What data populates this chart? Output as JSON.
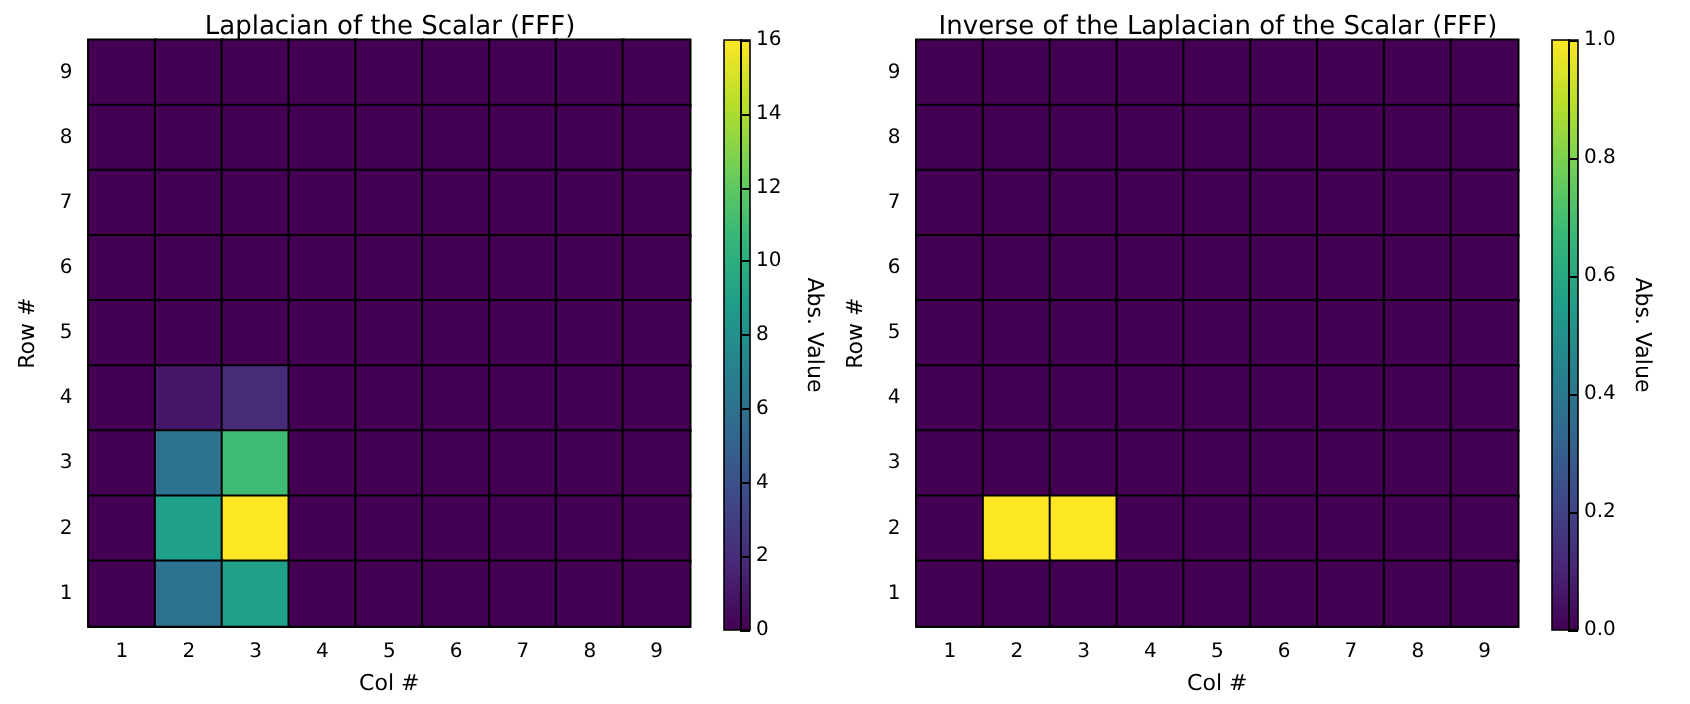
{
  "chart_data": [
    {
      "type": "heatmap",
      "title": "Laplacian of the Scalar (FFF)",
      "xlabel": "Col #",
      "ylabel": "Row #",
      "clabel": "Abs. Value",
      "categories": [
        "1",
        "2",
        "3",
        "4",
        "5",
        "6",
        "7",
        "8",
        "9"
      ],
      "y_categories": [
        "9",
        "8",
        "7",
        "6",
        "5",
        "4",
        "3",
        "2",
        "1"
      ],
      "cells": [
        [
          0,
          0,
          0,
          0,
          0,
          0,
          0,
          0,
          0
        ],
        [
          0,
          0,
          0,
          0,
          0,
          0,
          0,
          0,
          0
        ],
        [
          0,
          0,
          0,
          0,
          0,
          0,
          0,
          0,
          0
        ],
        [
          0,
          0,
          0,
          0,
          0,
          0,
          0,
          0,
          0
        ],
        [
          0,
          0,
          0,
          0,
          0,
          0,
          0,
          0,
          0
        ],
        [
          0,
          1,
          2,
          0,
          0,
          0,
          0,
          0,
          0
        ],
        [
          0,
          6,
          11,
          0,
          0,
          0,
          0,
          0,
          0
        ],
        [
          0,
          9,
          16,
          0,
          0,
          0,
          0,
          0,
          0
        ],
        [
          0,
          6,
          9,
          0,
          0,
          0,
          0,
          0,
          0
        ]
      ],
      "clim": [
        0,
        16
      ],
      "cticks": [
        0,
        2,
        4,
        6,
        8,
        10,
        12,
        14,
        16
      ]
    },
    {
      "type": "heatmap",
      "title": "Inverse of the Laplacian of the Scalar (FFF)",
      "xlabel": "Col #",
      "ylabel": "Row #",
      "clabel": "Abs. Value",
      "categories": [
        "1",
        "2",
        "3",
        "4",
        "5",
        "6",
        "7",
        "8",
        "9"
      ],
      "y_categories": [
        "9",
        "8",
        "7",
        "6",
        "5",
        "4",
        "3",
        "2",
        "1"
      ],
      "cells": [
        [
          0,
          0,
          0,
          0,
          0,
          0,
          0,
          0,
          0
        ],
        [
          0,
          0,
          0,
          0,
          0,
          0,
          0,
          0,
          0
        ],
        [
          0,
          0,
          0,
          0,
          0,
          0,
          0,
          0,
          0
        ],
        [
          0,
          0,
          0,
          0,
          0,
          0,
          0,
          0,
          0
        ],
        [
          0,
          0,
          0,
          0,
          0,
          0,
          0,
          0,
          0
        ],
        [
          0,
          0,
          0,
          0,
          0,
          0,
          0,
          0,
          0
        ],
        [
          0,
          0,
          0,
          0,
          0,
          0,
          0,
          0,
          0
        ],
        [
          0,
          1,
          1,
          0,
          0,
          0,
          0,
          0,
          0
        ],
        [
          0,
          0,
          0,
          0,
          0,
          0,
          0,
          0,
          0
        ]
      ],
      "clim": [
        0,
        1
      ],
      "cticks": [
        {
          "value": 0,
          "label": "0.0"
        },
        {
          "value": 0.2,
          "label": "0.2"
        },
        {
          "value": 0.4,
          "label": "0.4"
        },
        {
          "value": 0.6,
          "label": "0.6"
        },
        {
          "value": 0.8,
          "label": "0.8"
        },
        {
          "value": 1,
          "label": "1.0"
        }
      ]
    }
  ]
}
